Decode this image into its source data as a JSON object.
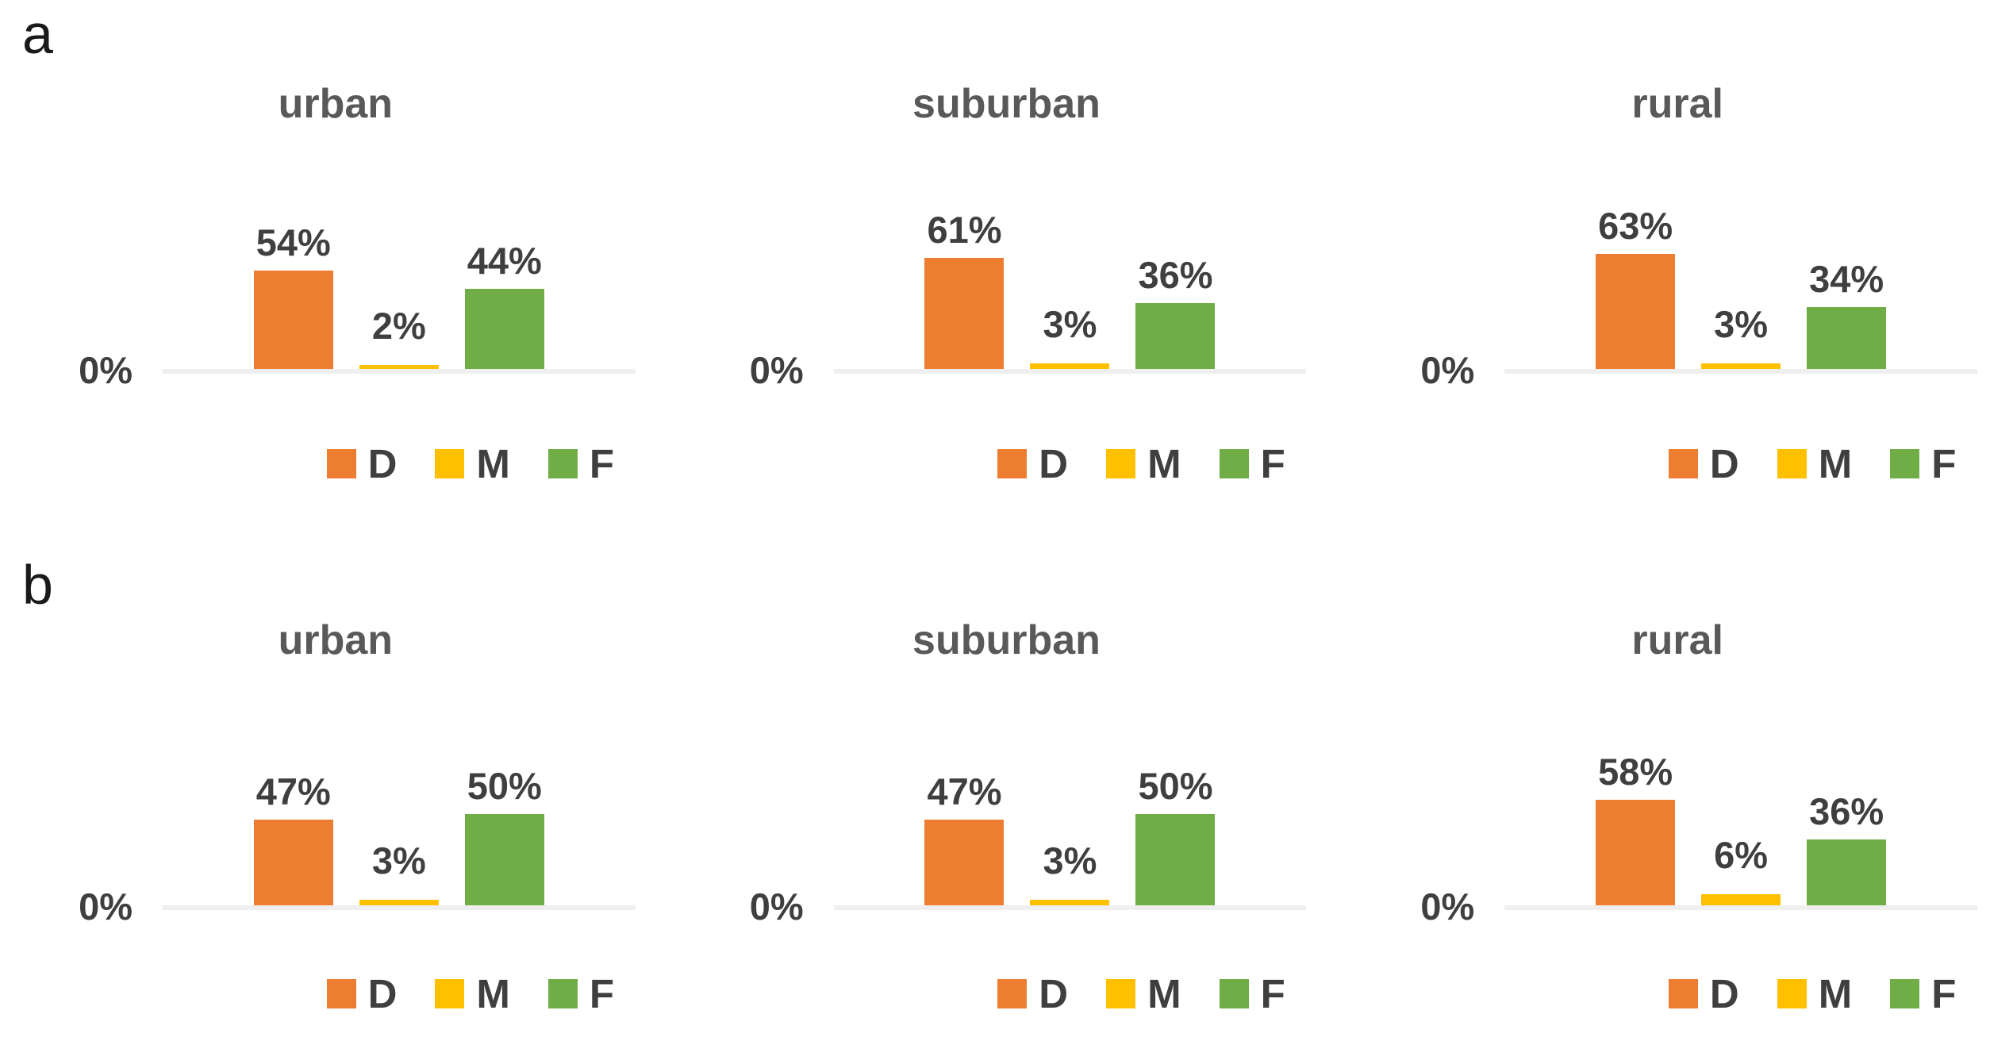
{
  "figure": {
    "panel_labels": [
      "a",
      "b"
    ],
    "background": "#ffffff"
  },
  "colors": {
    "D": "#ED7D31",
    "M": "#FFC000",
    "F": "#70AD47",
    "baseline": "#EFEFEF",
    "title_text": "#595959",
    "label_text": "#3F3F3F"
  },
  "chart_data": [
    {
      "type": "bar",
      "panel": "a",
      "title": "urban",
      "categories": [
        "D",
        "M",
        "F"
      ],
      "values": [
        54,
        2,
        44
      ],
      "labels": [
        "54%",
        "2%",
        "44%"
      ],
      "ylabel_zero": "0%",
      "legend": [
        "D",
        "M",
        "F"
      ],
      "ylim": [
        0,
        100
      ],
      "grid": false,
      "legend_position": "bottom"
    },
    {
      "type": "bar",
      "panel": "a",
      "title": "suburban",
      "categories": [
        "D",
        "M",
        "F"
      ],
      "values": [
        61,
        3,
        36
      ],
      "labels": [
        "61%",
        "3%",
        "36%"
      ],
      "ylabel_zero": "0%",
      "legend": [
        "D",
        "M",
        "F"
      ],
      "ylim": [
        0,
        100
      ],
      "grid": false,
      "legend_position": "bottom"
    },
    {
      "type": "bar",
      "panel": "a",
      "title": "rural",
      "categories": [
        "D",
        "M",
        "F"
      ],
      "values": [
        63,
        3,
        34
      ],
      "labels": [
        "63%",
        "3%",
        "34%"
      ],
      "ylabel_zero": "0%",
      "legend": [
        "D",
        "M",
        "F"
      ],
      "ylim": [
        0,
        100
      ],
      "grid": false,
      "legend_position": "bottom"
    },
    {
      "type": "bar",
      "panel": "b",
      "title": "urban",
      "categories": [
        "D",
        "M",
        "F"
      ],
      "values": [
        47,
        3,
        50
      ],
      "labels": [
        "47%",
        "3%",
        "50%"
      ],
      "ylabel_zero": "0%",
      "legend": [
        "D",
        "M",
        "F"
      ],
      "ylim": [
        0,
        100
      ],
      "grid": false,
      "legend_position": "bottom"
    },
    {
      "type": "bar",
      "panel": "b",
      "title": "suburban",
      "categories": [
        "D",
        "M",
        "F"
      ],
      "values": [
        47,
        3,
        50
      ],
      "labels": [
        "47%",
        "3%",
        "50%"
      ],
      "ylabel_zero": "0%",
      "legend": [
        "D",
        "M",
        "F"
      ],
      "ylim": [
        0,
        100
      ],
      "grid": false,
      "legend_position": "bottom"
    },
    {
      "type": "bar",
      "panel": "b",
      "title": "rural",
      "categories": [
        "D",
        "M",
        "F"
      ],
      "values": [
        58,
        6,
        36
      ],
      "labels": [
        "58%",
        "6%",
        "36%"
      ],
      "ylabel_zero": "0%",
      "legend": [
        "D",
        "M",
        "F"
      ],
      "ylim": [
        0,
        100
      ],
      "grid": false,
      "legend_position": "bottom"
    }
  ]
}
